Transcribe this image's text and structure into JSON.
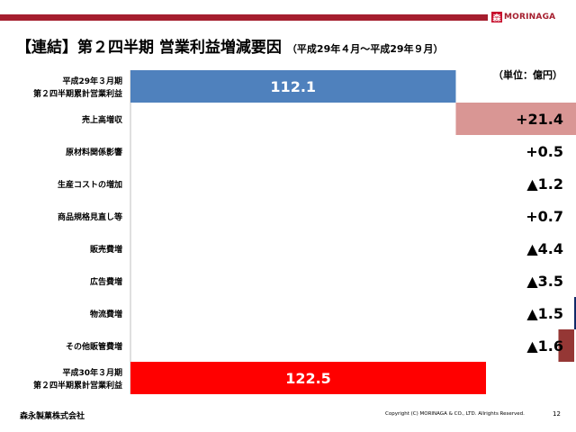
{
  "header": {
    "logo_mark": "森",
    "logo_text": "MORINAGA"
  },
  "title": {
    "main": "【連結】第２四半期 営業利益増減要因",
    "sub": "（平成29年４月～平成29年９月）"
  },
  "unit": "（単位：億円）",
  "chart_data": {
    "type": "waterfall",
    "x_range": [
      0,
      122.5
    ],
    "items": [
      {
        "label_lines": [
          "平成29年３月期",
          "第２四半期累計営業利益"
        ],
        "kind": "total",
        "value": 112.1,
        "label": "112.1",
        "color": "#4f81bd"
      },
      {
        "label_lines": [
          "売上高増収"
        ],
        "kind": "delta",
        "value": 21.4,
        "label": "+21.4",
        "color": "#d99694"
      },
      {
        "label_lines": [
          "原材料関係影響"
        ],
        "kind": "delta",
        "value": 0.5,
        "label": "+0.5",
        "color": "#ffff00"
      },
      {
        "label_lines": [
          "生産コストの増加"
        ],
        "kind": "delta",
        "value": -1.2,
        "label": "▲1.2",
        "color": "#9bbb59"
      },
      {
        "label_lines": [
          "商品規格見直し等"
        ],
        "kind": "delta",
        "value": 0.7,
        "label": "+0.7",
        "color": "#ffc000"
      },
      {
        "label_lines": [
          "販売費増"
        ],
        "kind": "delta",
        "value": -4.4,
        "label": "▲4.4",
        "color": "#00b0f0"
      },
      {
        "label_lines": [
          "広告費増"
        ],
        "kind": "delta",
        "value": -3.5,
        "label": "▲3.5",
        "color": "#b2a1c7"
      },
      {
        "label_lines": [
          "物流費増"
        ],
        "kind": "delta",
        "value": -1.5,
        "label": "▲1.5",
        "color": "#0f2867"
      },
      {
        "label_lines": [
          "その他販管費増"
        ],
        "kind": "delta",
        "value": -1.6,
        "label": "▲1.6",
        "color": "#953735"
      },
      {
        "label_lines": [
          "平成30年３月期",
          "第２四半期累計営業利益"
        ],
        "kind": "total",
        "value": 122.5,
        "label": "122.5",
        "color": "#ff0000"
      }
    ]
  },
  "footer": {
    "company": "森永製菓株式会社",
    "copyright": "Copyright (C) MORINAGA & CO., LTD. Allrights Reserved.",
    "page": "12"
  }
}
